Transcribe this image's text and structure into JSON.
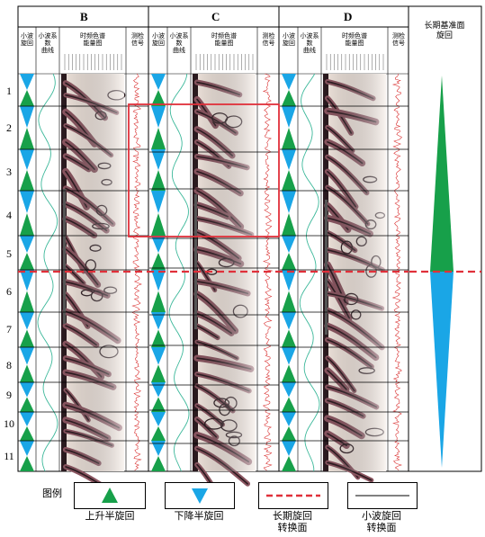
{
  "wells": [
    {
      "name": "B",
      "id": "well-b"
    },
    {
      "name": "C",
      "id": "well-c"
    },
    {
      "name": "D",
      "id": "well-d"
    }
  ],
  "track_labels": {
    "cycle": "小波\n旋回",
    "coef": "小波系数\n曲线",
    "energy": "时频色谱\n能量图",
    "log": "测检\n信号"
  },
  "long_term_header": "长期基准面\n旋回",
  "row_numbers": [
    "1",
    "2",
    "3",
    "4",
    "5",
    "6",
    "7",
    "8",
    "9",
    "10",
    "11"
  ],
  "legend": {
    "title": "图例",
    "items": [
      {
        "label": "上升半旋回"
      },
      {
        "label": "下降半旋回"
      },
      {
        "label": "长期旋回\n转换面"
      },
      {
        "label": "小波旋回\n转换面"
      }
    ]
  },
  "colors": {
    "rising": "#17a04a",
    "falling": "#1aa6e6",
    "long_boundary": "#e0303a",
    "energy_dark": "#2b1a1f",
    "energy_mid": "#8a5560",
    "energy_light": "#f3e7df",
    "coef_curve": "#3cb89a",
    "log_curve": "#d93030",
    "highlight_box": "#e0303a"
  }
}
